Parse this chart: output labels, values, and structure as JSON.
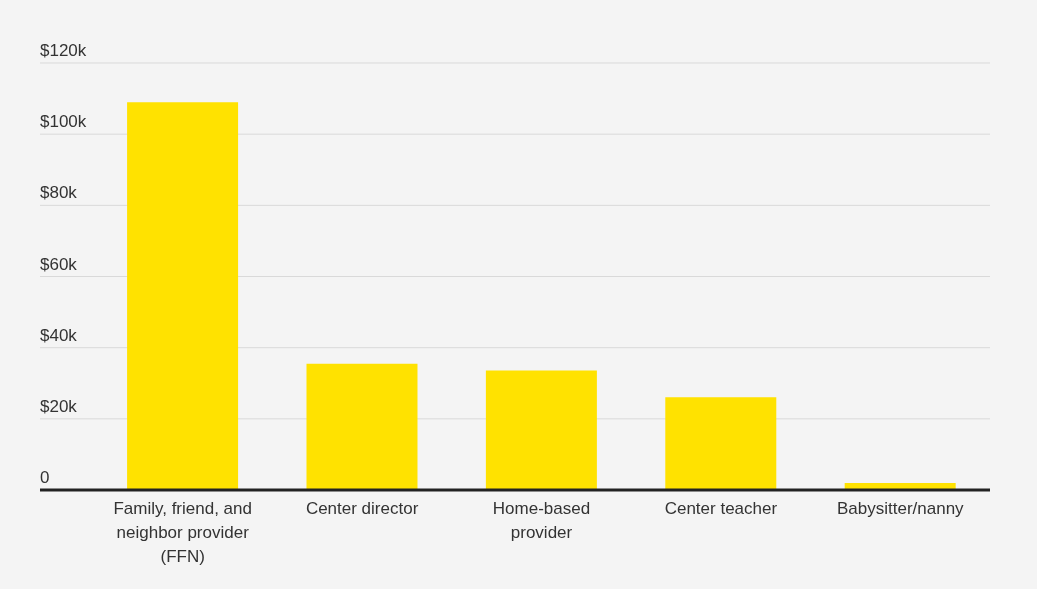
{
  "chart_data": {
    "type": "bar",
    "categories": [
      "Family, friend, and neighbor provider (FFN)",
      "Center director",
      "Home-based provider",
      "Center teacher",
      "Babysitter/nanny"
    ],
    "values": [
      109000,
      35500,
      33600,
      26100,
      2000
    ],
    "color": "#ffe200",
    "ylim": [
      0,
      120000
    ],
    "yticks": [
      {
        "value": 0,
        "label": "0"
      },
      {
        "value": 20000,
        "label": "$20k"
      },
      {
        "value": 40000,
        "label": "$40k"
      },
      {
        "value": 60000,
        "label": "$60k"
      },
      {
        "value": 80000,
        "label": "$80k"
      },
      {
        "value": 100000,
        "label": "$100k"
      },
      {
        "value": 120000,
        "label": "$120k"
      }
    ],
    "grid": "y",
    "legend": false
  }
}
